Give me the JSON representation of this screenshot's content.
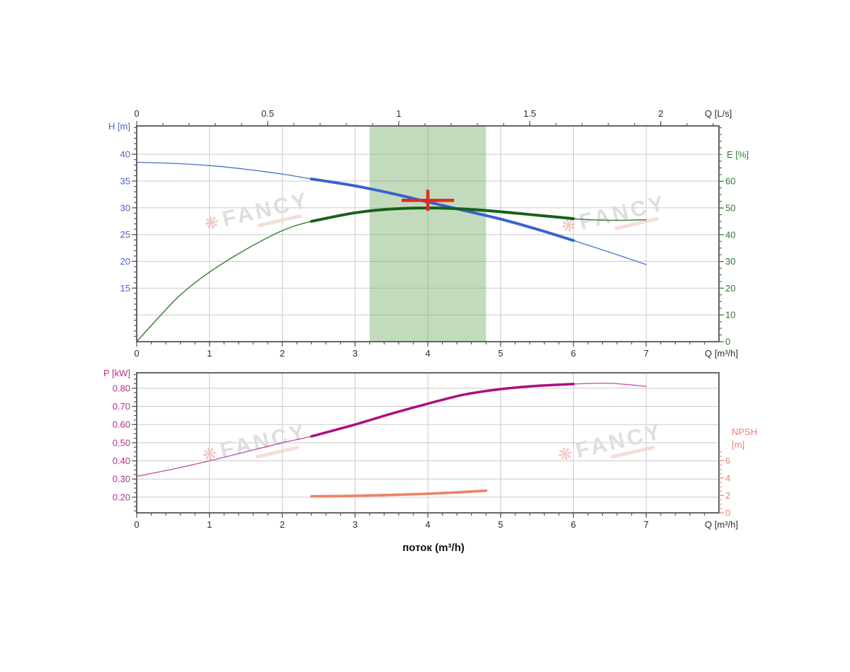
{
  "page": {
    "background": "#ffffff"
  },
  "watermark": {
    "text": "FANCY",
    "logo_glyph": "❋",
    "text_color": "#dedede",
    "logo_color": "#eba9a4",
    "tagline_color": "#f3d4cf"
  },
  "colors": {
    "grid": "#cbcbcb",
    "axis_border": "#555555",
    "operating_band": "rgba(123,175,108,0.45)",
    "duty_point": "#e52b1e",
    "head_curve": "#3a62cf",
    "efficiency_curve": "#15611a",
    "power_curve": "#ab0f7e",
    "npsh_curve": "#ef8265"
  },
  "chart_data": [
    {
      "name": "head-efficiency-chart",
      "type": "line",
      "x_axis_bottom": {
        "label": "Q [m³/h]",
        "min": 0,
        "max": 8,
        "tick_values": [
          0,
          1,
          2,
          3,
          4,
          5,
          6,
          7
        ],
        "tick_labels": [
          "0",
          "1",
          "2",
          "3",
          "4",
          "5",
          "6",
          "7"
        ],
        "minor": {
          "from": 0.2,
          "to": 7.8,
          "step": 0.2
        },
        "label_color": "#2b2b2b",
        "tick_color": "#555555"
      },
      "x_axis_top": {
        "label": "Q [L/s]",
        "min": 0,
        "max": 2.2222,
        "tick_values": [
          0,
          0.5,
          1,
          1.5,
          2
        ],
        "tick_labels": [
          "0",
          "0.5",
          "1",
          "1.5",
          "2"
        ],
        "minor": {
          "from": 0.1,
          "to": 2.2,
          "step": 0.1
        },
        "label_color": "#2b2b2b",
        "tick_color": "#555555"
      },
      "y_axis_left": {
        "label": "H [m]",
        "min": 5,
        "max": 45.3,
        "tick_values": [
          15,
          20,
          25,
          30,
          35,
          40
        ],
        "tick_labels": [
          "15",
          "20",
          "25",
          "30",
          "35",
          "40"
        ],
        "grid_values": [
          10,
          15,
          20,
          25,
          30,
          35,
          40
        ],
        "minor": {
          "from": 6,
          "to": 45,
          "step": 1
        },
        "label_color": "#4a5fd2",
        "tick_color": "#555555"
      },
      "y_axis_right": {
        "label": "E [%]",
        "min": 0,
        "max": 80.7,
        "tick_values": [
          0,
          10,
          20,
          30,
          40,
          50,
          60
        ],
        "tick_labels": [
          "0",
          "10",
          "20",
          "30",
          "40",
          "50",
          "60"
        ],
        "minor": {
          "from": 0,
          "to": 80,
          "step": 2.5
        },
        "label_color": "#2c7a2c",
        "tick_color": "#2c7a2c"
      },
      "band": {
        "x_from": 3.2,
        "x_to": 4.8
      },
      "duty_point": {
        "q": 4.0,
        "h": 31.4
      },
      "series": [
        {
          "name": "head-curve",
          "axis": "left",
          "color_thin": "#5377d6",
          "color_thick": "#3a62cf",
          "width_thin": 1.4,
          "width_thick": 4,
          "thick_from": 2.4,
          "thick_to": 6,
          "points": [
            [
              0,
              38.5
            ],
            [
              0.5,
              38.3
            ],
            [
              1,
              37.9
            ],
            [
              1.5,
              37.2
            ],
            [
              2,
              36.3
            ],
            [
              2.4,
              35.4
            ],
            [
              3,
              34.1
            ],
            [
              3.5,
              32.7
            ],
            [
              4,
              31.1
            ],
            [
              4.5,
              29.5
            ],
            [
              5,
              27.9
            ],
            [
              5.5,
              26.0
            ],
            [
              6,
              23.9
            ],
            [
              6.5,
              21.7
            ],
            [
              7,
              19.4
            ]
          ]
        },
        {
          "name": "efficiency-curve",
          "axis": "right",
          "color_thin": "#2f7d32",
          "color_thick": "#15611a",
          "width_thin": 1.4,
          "width_thick": 4,
          "thick_from": 2.4,
          "thick_to": 6,
          "points": [
            [
              0,
              0
            ],
            [
              0.3,
              9
            ],
            [
              0.6,
              17.5
            ],
            [
              1,
              26
            ],
            [
              1.5,
              34.5
            ],
            [
              2,
              41.5
            ],
            [
              2.4,
              45
            ],
            [
              3,
              48.2
            ],
            [
              3.5,
              49.6
            ],
            [
              4,
              50
            ],
            [
              4.5,
              49.6
            ],
            [
              5,
              48.6
            ],
            [
              5.5,
              47.3
            ],
            [
              6,
              46
            ],
            [
              6.5,
              45.4
            ],
            [
              7,
              45.6
            ]
          ]
        }
      ]
    },
    {
      "name": "power-npsh-chart",
      "type": "line",
      "x_axis_bottom": {
        "label": "Q [m³/h]",
        "min": 0,
        "max": 8,
        "tick_values": [
          0,
          1,
          2,
          3,
          4,
          5,
          6,
          7
        ],
        "tick_labels": [
          "0",
          "1",
          "2",
          "3",
          "4",
          "5",
          "6",
          "7"
        ],
        "minor": {
          "from": 0.2,
          "to": 7.8,
          "step": 0.2
        },
        "label_color": "#2b2b2b",
        "tick_color": "#555555"
      },
      "y_axis_left": {
        "label": "P [kW]",
        "min": 0.114,
        "max": 0.885,
        "tick_values": [
          0.2,
          0.3,
          0.4,
          0.5,
          0.6,
          0.7,
          0.8
        ],
        "tick_labels": [
          "0.20",
          "0.30",
          "0.40",
          "0.50",
          "0.60",
          "0.70",
          "0.80"
        ],
        "grid_values": [
          0.2,
          0.3,
          0.4,
          0.5,
          0.6,
          0.7,
          0.8
        ],
        "minor": {
          "from": 0.125,
          "to": 0.875,
          "step": 0.025
        },
        "label_color": "#bb2d86",
        "tick_color": "#555555"
      },
      "y_axis_right": {
        "label_lines": [
          "NPSH",
          "[m]"
        ],
        "min": 0,
        "max": 16.1,
        "tick_values": [
          0,
          2,
          4,
          6
        ],
        "tick_labels": [
          "0",
          "2",
          "4",
          "6"
        ],
        "minor": {
          "from": 0,
          "to": 7,
          "step": 0.5
        },
        "label_color": "#ef8172",
        "tick_color": "#ef8172"
      },
      "bottom_title": "поток (m³/h)",
      "series": [
        {
          "name": "power-curve",
          "axis": "left",
          "color_thin": "#c14b9f",
          "color_thick": "#ab0f7e",
          "width_thin": 1.3,
          "width_thick": 3.5,
          "thick_from": 2.4,
          "thick_to": 6,
          "points": [
            [
              0,
              0.315
            ],
            [
              0.5,
              0.355
            ],
            [
              1,
              0.4
            ],
            [
              1.5,
              0.45
            ],
            [
              2,
              0.5
            ],
            [
              2.4,
              0.535
            ],
            [
              3,
              0.6
            ],
            [
              3.5,
              0.66
            ],
            [
              4,
              0.715
            ],
            [
              4.5,
              0.765
            ],
            [
              5,
              0.795
            ],
            [
              5.5,
              0.813
            ],
            [
              6,
              0.823
            ],
            [
              6.5,
              0.827
            ],
            [
              7,
              0.81
            ]
          ]
        },
        {
          "name": "npsh-curve",
          "axis": "right",
          "color_thin": "#ef8265",
          "color_thick": "#ef8265",
          "width_thin": 3.5,
          "width_thick": 3.5,
          "thick_from": 2.4,
          "thick_to": 4.8,
          "points": [
            [
              2.4,
              1.9
            ],
            [
              2.8,
              1.93
            ],
            [
              3.2,
              2.0
            ],
            [
              3.6,
              2.08
            ],
            [
              4,
              2.2
            ],
            [
              4.4,
              2.35
            ],
            [
              4.8,
              2.55
            ]
          ]
        }
      ]
    }
  ]
}
